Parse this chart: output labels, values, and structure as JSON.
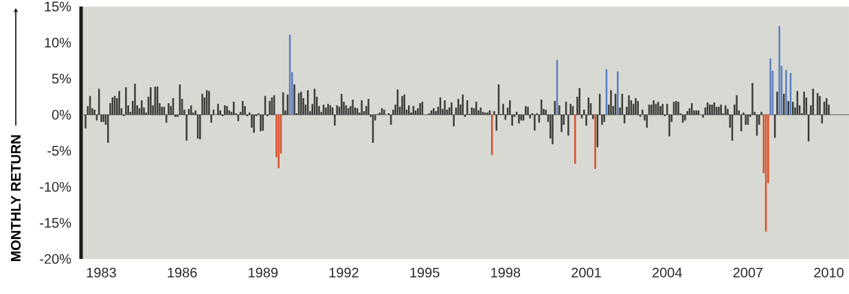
{
  "chart_data": {
    "type": "bar",
    "ylabel": "MONTHLY RETURN",
    "x": [
      "1982-06",
      "1982-07",
      "1982-08",
      "1982-09",
      "1982-10",
      "1982-11",
      "1982-12",
      "1983-01",
      "1983-02",
      "1983-03",
      "1983-04",
      "1983-05",
      "1983-06",
      "1983-07",
      "1983-08",
      "1983-09",
      "1983-10",
      "1983-11",
      "1983-12",
      "1984-01",
      "1984-02",
      "1984-03",
      "1984-04",
      "1984-05",
      "1984-06",
      "1984-07",
      "1984-08",
      "1984-09",
      "1984-10",
      "1984-11",
      "1984-12",
      "1985-01",
      "1985-02",
      "1985-03",
      "1985-04",
      "1985-05",
      "1985-06",
      "1985-07",
      "1985-08",
      "1985-09",
      "1985-10",
      "1985-11",
      "1985-12",
      "1986-01",
      "1986-02",
      "1986-03",
      "1986-04",
      "1986-05",
      "1986-06",
      "1986-07",
      "1986-08",
      "1986-09",
      "1986-10",
      "1986-11",
      "1986-12",
      "1987-01",
      "1987-02",
      "1987-03",
      "1987-04",
      "1987-05",
      "1987-06",
      "1987-07",
      "1987-08",
      "1987-09",
      "1987-10",
      "1987-11",
      "1987-12",
      "1988-01",
      "1988-02",
      "1988-03",
      "1988-04",
      "1988-05",
      "1988-06",
      "1988-07",
      "1988-08",
      "1988-09",
      "1988-10",
      "1988-11",
      "1988-12",
      "1989-01",
      "1989-02",
      "1989-03",
      "1989-04",
      "1989-05",
      "1989-06",
      "1989-07",
      "1989-08",
      "1989-09",
      "1989-10",
      "1989-11",
      "1989-12",
      "1990-01",
      "1990-02",
      "1990-03",
      "1990-04",
      "1990-05",
      "1990-06",
      "1990-07",
      "1990-08",
      "1990-09",
      "1990-10",
      "1990-11",
      "1990-12",
      "1991-01",
      "1991-02",
      "1991-03",
      "1991-04",
      "1991-05",
      "1991-06",
      "1991-07",
      "1991-08",
      "1991-09",
      "1991-10",
      "1991-11",
      "1991-12",
      "1992-01",
      "1992-02",
      "1992-03",
      "1992-04",
      "1992-05",
      "1992-06",
      "1992-07",
      "1992-08",
      "1992-09",
      "1992-10",
      "1992-11",
      "1992-12",
      "1993-01",
      "1993-02",
      "1993-03",
      "1993-04",
      "1993-05",
      "1993-06",
      "1993-07",
      "1993-08",
      "1993-09",
      "1993-10",
      "1993-11",
      "1993-12",
      "1994-01",
      "1994-02",
      "1994-03",
      "1994-04",
      "1994-05",
      "1994-06",
      "1994-07",
      "1994-08",
      "1994-09",
      "1994-10",
      "1994-11",
      "1994-12",
      "1995-01",
      "1995-02",
      "1995-03",
      "1995-04",
      "1995-05",
      "1995-06",
      "1995-07",
      "1995-08",
      "1995-09",
      "1995-10",
      "1995-11",
      "1995-12",
      "1996-01",
      "1996-02",
      "1996-03",
      "1996-04",
      "1996-05",
      "1996-06",
      "1996-07",
      "1996-08",
      "1996-09",
      "1996-10",
      "1996-11",
      "1996-12",
      "1997-01",
      "1997-02",
      "1997-03",
      "1997-04",
      "1997-05",
      "1997-06",
      "1997-07",
      "1997-08",
      "1997-09",
      "1997-10",
      "1997-11",
      "1997-12",
      "1998-01",
      "1998-02",
      "1998-03",
      "1998-04",
      "1998-05",
      "1998-06",
      "1998-07",
      "1998-08",
      "1998-09",
      "1998-10",
      "1998-11",
      "1998-12",
      "1999-01",
      "1999-02",
      "1999-03",
      "1999-04",
      "1999-05",
      "1999-06",
      "1999-07",
      "1999-08",
      "1999-09",
      "1999-10",
      "1999-11",
      "1999-12",
      "2000-01",
      "2000-02",
      "2000-03",
      "2000-04",
      "2000-05",
      "2000-06",
      "2000-07",
      "2000-08",
      "2000-09",
      "2000-10",
      "2000-11",
      "2000-12",
      "2001-01",
      "2001-02",
      "2001-03",
      "2001-04",
      "2001-05",
      "2001-06",
      "2001-07",
      "2001-08",
      "2001-09",
      "2001-10",
      "2001-11",
      "2001-12",
      "2002-01",
      "2002-02",
      "2002-03",
      "2002-04",
      "2002-05",
      "2002-06",
      "2002-07",
      "2002-08",
      "2002-09",
      "2002-10",
      "2002-11",
      "2002-12",
      "2003-01",
      "2003-02",
      "2003-03",
      "2003-04",
      "2003-05",
      "2003-06",
      "2003-07",
      "2003-08",
      "2003-09",
      "2003-10",
      "2003-11",
      "2003-12",
      "2004-01",
      "2004-02",
      "2004-03",
      "2004-04",
      "2004-05",
      "2004-06",
      "2004-07",
      "2004-08",
      "2004-09",
      "2004-10",
      "2004-11",
      "2004-12",
      "2005-01",
      "2005-02",
      "2005-03",
      "2005-04",
      "2005-05",
      "2005-06",
      "2005-07",
      "2005-08",
      "2005-09",
      "2005-10",
      "2005-11",
      "2005-12",
      "2006-01",
      "2006-02",
      "2006-03",
      "2006-04",
      "2006-05",
      "2006-06",
      "2006-07",
      "2006-08",
      "2006-09",
      "2006-10",
      "2006-11",
      "2006-12",
      "2007-01",
      "2007-02",
      "2007-03",
      "2007-04",
      "2007-05",
      "2007-06",
      "2007-07",
      "2007-08",
      "2007-09",
      "2007-10",
      "2007-11",
      "2007-12",
      "2008-01",
      "2008-02",
      "2008-03",
      "2008-04",
      "2008-05",
      "2008-06",
      "2008-07",
      "2008-08",
      "2008-09",
      "2008-10",
      "2008-11",
      "2008-12",
      "2009-01",
      "2009-02",
      "2009-03",
      "2009-04",
      "2009-05",
      "2009-06",
      "2009-07",
      "2009-08",
      "2009-09",
      "2009-10",
      "2009-11",
      "2009-12",
      "2010-01"
    ],
    "values": [
      -1.9,
      1.2,
      2.6,
      0.9,
      0.7,
      -0.8,
      3.6,
      -1.0,
      -1.0,
      -1.4,
      -3.9,
      1.6,
      2.4,
      2.6,
      2.3,
      3.3,
      0.9,
      -0.2,
      3.8,
      1.3,
      0.4,
      1.9,
      4.3,
      1.3,
      0.9,
      2.0,
      1.0,
      0.3,
      2.5,
      3.8,
      1.3,
      3.9,
      3.9,
      1.6,
      1.1,
      1.1,
      -1.1,
      1.6,
      1.2,
      2.3,
      -0.3,
      -0.3,
      4.2,
      2.2,
      0.7,
      -3.6,
      0.8,
      1.3,
      0.3,
      0.6,
      -3.3,
      -3.4,
      2.9,
      2.4,
      3.4,
      3.3,
      -1.1,
      0.7,
      null,
      1.5,
      0.6,
      -0.2,
      1.3,
      1.2,
      0.6,
      0.4,
      1.8,
      0.2,
      -0.9,
      0.4,
      1.9,
      1.2,
      -0.2,
      0.3,
      -1.8,
      -2.5,
      -0.2,
      0.2,
      -2.3,
      -2.2,
      2.6,
      -0.2,
      1.9,
      2.4,
      2.7,
      -5.9,
      -7.4,
      -5.4,
      3.1,
      0.6,
      2.8,
      11.1,
      5.9,
      4.2,
      0.2,
      3.0,
      3.2,
      2.3,
      1.4,
      3.4,
      0.5,
      1.5,
      3.6,
      2.5,
      1.2,
      0.4,
      1.4,
      1.0,
      1.5,
      1.3,
      1.0,
      -1.5,
      1.3,
      1.1,
      2.9,
      1.8,
      1.3,
      0.9,
      1.2,
      2.1,
      1.0,
      0.9,
      0.3,
      2.0,
      0.5,
      1.2,
      2.2,
      -0.3,
      -3.9,
      -0.8,
      0.1,
      0.3,
      0.9,
      0.7,
      null,
      0.2,
      -1.4,
      0.7,
      1.4,
      3.5,
      1.1,
      2.6,
      2.8,
      0.7,
      1.3,
      0.3,
      1.2,
      0.6,
      0.9,
      1.6,
      1.8,
      null,
      null,
      0.2,
      0.6,
      0.9,
      0.5,
      1.1,
      2.4,
      0.8,
      2.0,
      0.7,
      1.0,
      1.7,
      -1.6,
      1.0,
      2.2,
      1.4,
      2.8,
      -0.3,
      2.0,
      0.1,
      1.0,
      0.9,
      1.8,
      0.6,
      1.0,
      0.4,
      0.3,
      0.3,
      0.6,
      -5.6,
      0.5,
      -2.2,
      4.2,
      0.1,
      1.5,
      -0.7,
      1.0,
      2.0,
      -1.5,
      -0.3,
      0.4,
      -1.2,
      -0.8,
      -0.8,
      1.2,
      1.1,
      -0.5,
      0.2,
      -2.2,
      0.2,
      -1.1,
      2.1,
      0.8,
      0.7,
      -1.0,
      -3.3,
      -4.1,
      1.9,
      7.6,
      1.3,
      -2.4,
      -1.4,
      1.8,
      -2.9,
      1.5,
      1.2,
      -6.8,
      2.5,
      3.7,
      -0.5,
      0.7,
      -1.5,
      2.4,
      1.6,
      -0.6,
      -7.5,
      -4.5,
      2.9,
      -1.4,
      -1.0,
      6.3,
      1.4,
      3.4,
      1.2,
      2.9,
      6.0,
      1.0,
      2.9,
      -1.2,
      1.1,
      2.7,
      2.0,
      1.5,
      2.3,
      1.9,
      -0.3,
      0.7,
      -0.8,
      -1.8,
      1.4,
      1.4,
      2.0,
      1.5,
      1.8,
      1.2,
      1.5,
      -0.2,
      1.5,
      -3.0,
      -1.0,
      1.8,
      1.9,
      1.8,
      0.2,
      -1.1,
      -0.8,
      0.5,
      0.9,
      1.6,
      0.6,
      0.6,
      0.6,
      null,
      -0.4,
      1.0,
      1.7,
      1.4,
      1.4,
      1.7,
      1.1,
      1.1,
      1.4,
      0.2,
      1.3,
      0.8,
      -1.8,
      -3.6,
      1.4,
      2.7,
      0.6,
      -2.3,
      0.3,
      -1.4,
      -1.4,
      -0.3,
      4.4,
      0.4,
      -2.9,
      -1.4,
      0.4,
      -8.1,
      -16.2,
      -9.5,
      7.8,
      6.1,
      -3.2,
      3.2,
      12.3,
      6.8,
      2.9,
      6.2,
      1.9,
      5.8,
      1.8,
      1.0,
      3.3,
      1.3,
      0.2,
      3.2,
      2.4,
      -3.7,
      1.3,
      3.6,
      null,
      3.0,
      2.6,
      -1.2,
      1.8,
      2.3,
      1.4
    ],
    "colors": [
      "#3c3c3a",
      "#3c3c3a",
      "#3c3c3a",
      "#3c3c3a",
      "#3c3c3a",
      "#3c3c3a",
      "#3c3c3a",
      "#3c3c3a",
      "#3c3c3a",
      "#3c3c3a",
      "#3c3c3a",
      "#3c3c3a",
      "#3c3c3a",
      "#3c3c3a",
      "#3c3c3a",
      "#3c3c3a",
      "#3c3c3a",
      "#3c3c3a",
      "#3c3c3a",
      "#3c3c3a",
      "#3c3c3a",
      "#3c3c3a",
      "#3c3c3a",
      "#3c3c3a",
      "#3c3c3a",
      "#3c3c3a",
      "#3c3c3a",
      "#3c3c3a",
      "#3c3c3a",
      "#3c3c3a",
      "#3c3c3a",
      "#3c3c3a",
      "#3c3c3a",
      "#3c3c3a",
      "#3c3c3a",
      "#3c3c3a",
      "#3c3c3a",
      "#3c3c3a",
      "#3c3c3a",
      "#3c3c3a",
      "#3c3c3a",
      "#3c3c3a",
      "#3c3c3a",
      "#3c3c3a",
      "#3c3c3a",
      "#3c3c3a",
      "#3c3c3a",
      "#3c3c3a",
      "#3c3c3a",
      "#3c3c3a",
      "#3c3c3a",
      "#3c3c3a",
      "#3c3c3a",
      "#3c3c3a",
      "#3c3c3a",
      "#3c3c3a",
      "#3c3c3a",
      "#3c3c3a",
      "#3c3c3a",
      "#3c3c3a",
      "#3c3c3a",
      "#3c3c3a",
      "#3c3c3a",
      "#3c3c3a",
      "#3c3c3a",
      "#3c3c3a",
      "#3c3c3a",
      "#3c3c3a",
      "#3c3c3a",
      "#3c3c3a",
      "#3c3c3a",
      "#3c3c3a",
      "#3c3c3a",
      "#3c3c3a",
      "#3c3c3a",
      "#3c3c3a",
      "#3c3c3a",
      "#3c3c3a",
      "#3c3c3a",
      "#3c3c3a",
      "#3c3c3a",
      "#3c3c3a",
      "#3c3c3a",
      "#3c3c3a",
      "#3c3c3a",
      "#d6502a",
      "#d6502a",
      "#d6502a",
      "#3c3c3a",
      "#3c3c3a",
      "#3c3c3a",
      "#5a7fc0",
      "#5a7fc0",
      "#3c3c3a",
      "#3c3c3a",
      "#3c3c3a",
      "#3c3c3a",
      "#3c3c3a",
      "#3c3c3a",
      "#3c3c3a",
      "#3c3c3a",
      "#3c3c3a",
      "#3c3c3a",
      "#3c3c3a",
      "#3c3c3a",
      "#3c3c3a",
      "#3c3c3a",
      "#3c3c3a",
      "#3c3c3a",
      "#3c3c3a",
      "#3c3c3a",
      "#3c3c3a",
      "#3c3c3a",
      "#3c3c3a",
      "#3c3c3a",
      "#3c3c3a",
      "#3c3c3a",
      "#3c3c3a",
      "#3c3c3a",
      "#3c3c3a",
      "#3c3c3a",
      "#3c3c3a",
      "#3c3c3a",
      "#3c3c3a",
      "#3c3c3a",
      "#3c3c3a",
      "#3c3c3a",
      "#3c3c3a",
      "#3c3c3a",
      "#3c3c3a",
      "#3c3c3a",
      "#3c3c3a",
      "#3c3c3a",
      "#3c3c3a",
      "#3c3c3a",
      "#3c3c3a",
      "#3c3c3a",
      "#3c3c3a",
      "#3c3c3a",
      "#3c3c3a",
      "#3c3c3a",
      "#3c3c3a",
      "#3c3c3a",
      "#3c3c3a",
      "#3c3c3a",
      "#3c3c3a",
      "#3c3c3a",
      "#3c3c3a",
      "#3c3c3a",
      "#3c3c3a",
      "#3c3c3a",
      "#3c3c3a",
      "#3c3c3a",
      "#3c3c3a",
      "#3c3c3a",
      "#3c3c3a",
      "#3c3c3a",
      "#3c3c3a",
      "#3c3c3a",
      "#3c3c3a",
      "#3c3c3a",
      "#3c3c3a",
      "#3c3c3a",
      "#3c3c3a",
      "#3c3c3a",
      "#3c3c3a",
      "#3c3c3a",
      "#3c3c3a",
      "#3c3c3a",
      "#3c3c3a",
      "#3c3c3a",
      "#3c3c3a",
      "#3c3c3a",
      "#3c3c3a",
      "#3c3c3a",
      "#3c3c3a",
      "#3c3c3a",
      "#3c3c3a",
      "#3c3c3a",
      "#3c3c3a",
      "#3c3c3a",
      "#d6502a",
      "#3c3c3a",
      "#3c3c3a",
      "#3c3c3a",
      "#3c3c3a",
      "#3c3c3a",
      "#3c3c3a",
      "#3c3c3a",
      "#3c3c3a",
      "#3c3c3a",
      "#3c3c3a",
      "#3c3c3a",
      "#3c3c3a",
      "#3c3c3a",
      "#3c3c3a",
      "#3c3c3a",
      "#3c3c3a",
      "#3c3c3a",
      "#3c3c3a",
      "#3c3c3a",
      "#3c3c3a",
      "#3c3c3a",
      "#3c3c3a",
      "#3c3c3a",
      "#3c3c3a",
      "#3c3c3a",
      "#3c3c3a",
      "#3c3c3a",
      "#3c3c3a",
      "#5a7fc0",
      "#3c3c3a",
      "#3c3c3a",
      "#3c3c3a",
      "#3c3c3a",
      "#3c3c3a",
      "#3c3c3a",
      "#3c3c3a",
      "#d6502a",
      "#3c3c3a",
      "#3c3c3a",
      "#3c3c3a",
      "#3c3c3a",
      "#3c3c3a",
      "#3c3c3a",
      "#3c3c3a",
      "#3c3c3a",
      "#d6502a",
      "#3c3c3a",
      "#3c3c3a",
      "#3c3c3a",
      "#3c3c3a",
      "#5a7fc0",
      "#3c3c3a",
      "#3c3c3a",
      "#3c3c3a",
      "#3c3c3a",
      "#5a7fc0",
      "#3c3c3a",
      "#3c3c3a",
      "#3c3c3a",
      "#3c3c3a",
      "#3c3c3a",
      "#3c3c3a",
      "#3c3c3a",
      "#3c3c3a",
      "#3c3c3a",
      "#3c3c3a",
      "#3c3c3a",
      "#3c3c3a",
      "#3c3c3a",
      "#3c3c3a",
      "#3c3c3a",
      "#3c3c3a",
      "#3c3c3a",
      "#3c3c3a",
      "#3c3c3a",
      "#3c3c3a",
      "#3c3c3a",
      "#3c3c3a",
      "#3c3c3a",
      "#3c3c3a",
      "#3c3c3a",
      "#3c3c3a",
      "#3c3c3a",
      "#3c3c3a",
      "#3c3c3a",
      "#3c3c3a",
      "#3c3c3a",
      "#3c3c3a",
      "#3c3c3a",
      "#3c3c3a",
      "#3c3c3a",
      "#3c3c3a",
      "#3c3c3a",
      "#3c3c3a",
      "#3c3c3a",
      "#3c3c3a",
      "#3c3c3a",
      "#3c3c3a",
      "#3c3c3a",
      "#3c3c3a",
      "#3c3c3a",
      "#3c3c3a",
      "#3c3c3a",
      "#3c3c3a",
      "#3c3c3a",
      "#3c3c3a",
      "#3c3c3a",
      "#3c3c3a",
      "#3c3c3a",
      "#3c3c3a",
      "#3c3c3a",
      "#3c3c3a",
      "#3c3c3a",
      "#3c3c3a",
      "#3c3c3a",
      "#3c3c3a",
      "#3c3c3a",
      "#3c3c3a",
      "#3c3c3a",
      "#3c3c3a",
      "#d6502a",
      "#d6502a",
      "#d6502a",
      "#5a7fc0",
      "#5a7fc0",
      "#3c3c3a",
      "#3c3c3a",
      "#5a7fc0",
      "#5a7fc0",
      "#3c3c3a",
      "#5a7fc0",
      "#3c3c3a",
      "#5a7fc0",
      "#3c3c3a",
      "#3c3c3a",
      "#3c3c3a",
      "#3c3c3a",
      "#3c3c3a",
      "#3c3c3a",
      "#3c3c3a",
      "#3c3c3a",
      "#3c3c3a",
      "#3c3c3a",
      "#3c3c3a",
      "#3c3c3a",
      "#3c3c3a",
      "#3c3c3a",
      "#3c3c3a",
      "#3c3c3a",
      "#3c3c3a"
    ],
    "xlim": [
      "1982-04",
      "2010-10"
    ],
    "ref_lines": [
      {
        "axis": "y",
        "value": 0,
        "color": "#323230"
      }
    ],
    "xticks": [
      "1983",
      "1986",
      "1989",
      "1992",
      "1995",
      "1998",
      "2001",
      "2004",
      "2007",
      "2010"
    ],
    "ylim": [
      -20,
      15
    ],
    "yticks": [
      {
        "value": -20,
        "label": "-20%"
      },
      {
        "value": -15,
        "label": "-15%"
      },
      {
        "value": -10,
        "label": "-10%"
      },
      {
        "value": -5,
        "label": "-5%"
      },
      {
        "value": 0,
        "label": "0%"
      },
      {
        "value": 5,
        "label": "5%"
      },
      {
        "value": 10,
        "label": "10%"
      },
      {
        "value": 15,
        "label": "15%"
      }
    ],
    "grid": false
  }
}
